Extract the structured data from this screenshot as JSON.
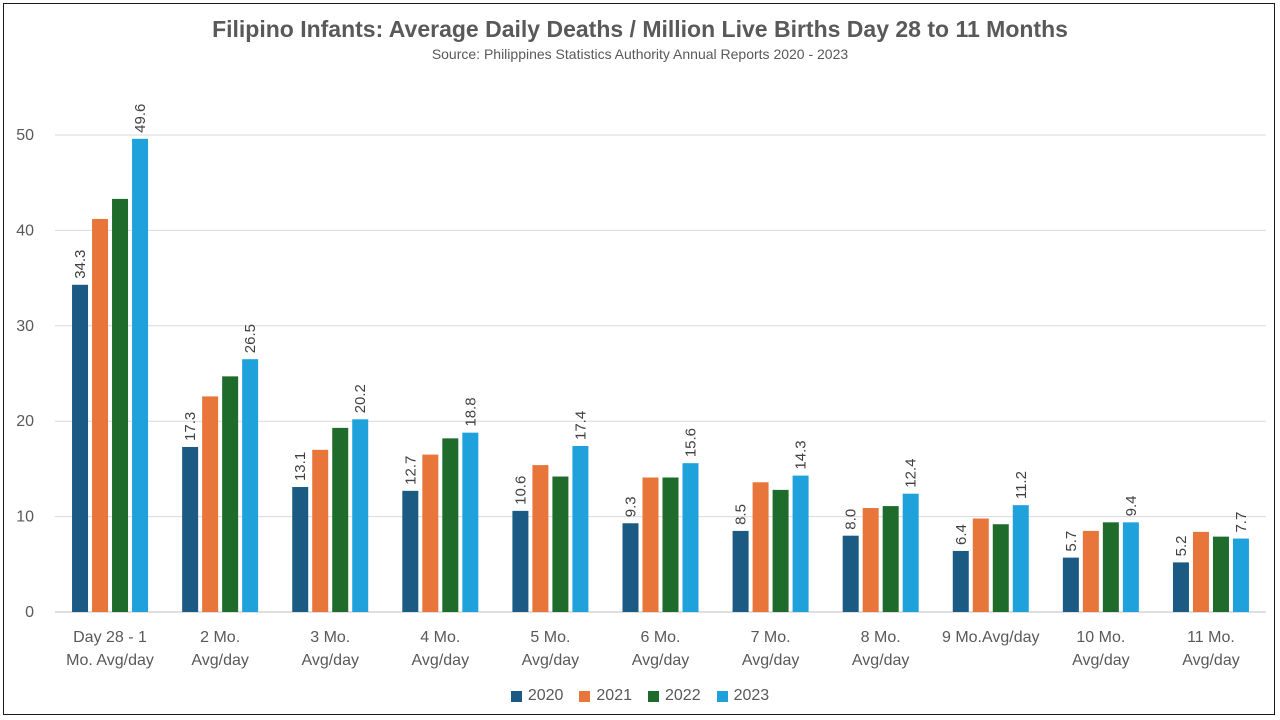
{
  "chart_data": {
    "type": "bar",
    "title": "Filipino Infants: Average Daily Deaths / Million Live Births Day 28 to 11 Months",
    "subtitle": "Source: Philippines Statistics Authority Annual Reports 2020 - 2023",
    "xlabel": "",
    "ylabel": "",
    "ylim": [
      0,
      50
    ],
    "yticks": [
      0,
      10,
      20,
      30,
      40,
      50
    ],
    "grid": true,
    "legend_position": "bottom",
    "categories": [
      [
        "Day 28 - 1",
        "Mo. Avg/day"
      ],
      [
        "2 Mo.",
        "Avg/day"
      ],
      [
        "3 Mo.",
        "Avg/day"
      ],
      [
        "4 Mo.",
        "Avg/day"
      ],
      [
        "5 Mo.",
        "Avg/day"
      ],
      [
        "6 Mo.",
        "Avg/day"
      ],
      [
        "7 Mo.",
        "Avg/day"
      ],
      [
        "8 Mo.",
        "Avg/day"
      ],
      [
        "9 Mo.Avg/day"
      ],
      [
        "10 Mo.",
        "Avg/day"
      ],
      [
        "11 Mo.",
        "Avg/day"
      ]
    ],
    "series": [
      {
        "name": "2020",
        "color": "#1b5a82",
        "labeled": true,
        "values": [
          34.3,
          17.3,
          13.1,
          12.7,
          10.6,
          9.3,
          8.5,
          8.0,
          6.4,
          5.7,
          5.2
        ]
      },
      {
        "name": "2021",
        "color": "#e8763a",
        "labeled": false,
        "values": [
          41.2,
          22.6,
          17.0,
          16.5,
          15.4,
          14.1,
          13.6,
          10.9,
          9.8,
          8.5,
          8.4
        ]
      },
      {
        "name": "2022",
        "color": "#1f6b2b",
        "labeled": false,
        "values": [
          43.3,
          24.7,
          19.3,
          18.2,
          14.2,
          14.1,
          12.8,
          11.1,
          9.2,
          9.4,
          7.9
        ]
      },
      {
        "name": "2023",
        "color": "#1fa2dc",
        "labeled": true,
        "values": [
          49.6,
          26.5,
          20.2,
          18.8,
          17.4,
          15.6,
          14.3,
          12.4,
          11.2,
          9.4,
          7.7
        ]
      }
    ],
    "value_label_format": "0.0"
  }
}
